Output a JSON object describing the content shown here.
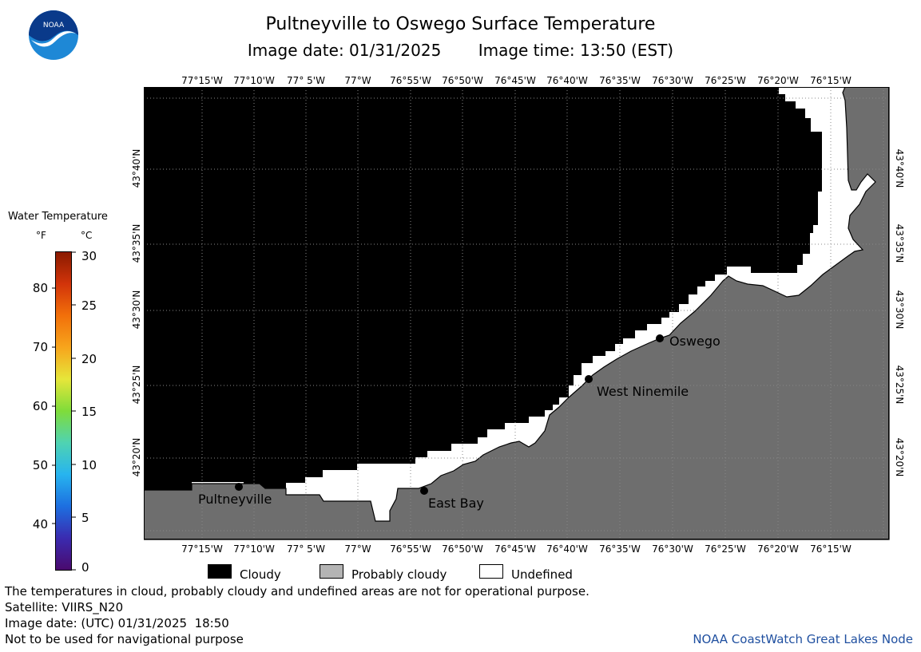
{
  "header": {
    "title": "Pultneyville to Oswego Surface Temperature",
    "image_date": "Image date: 01/31/2025",
    "image_time": "Image time: 13:50 (EST)"
  },
  "logo": {
    "text": "NOAA",
    "colors": {
      "outer": "#1e88d6",
      "inner": "#0a3a8a",
      "bird": "#ffffff"
    }
  },
  "map": {
    "longitude_labels": [
      "77°15'W",
      "77°10'W",
      "77° 5'W",
      "77°W",
      "76°55'W",
      "76°50'W",
      "76°45'W",
      "76°40'W",
      "76°35'W",
      "76°30'W",
      "76°25'W",
      "76°20'W",
      "76°15'W"
    ],
    "latitude_labels": [
      "43°40'N",
      "43°35'N",
      "43°30'N",
      "43°25'N",
      "43°20'N"
    ],
    "places": [
      {
        "name": "Pultneyville"
      },
      {
        "name": "East Bay"
      },
      {
        "name": "West Ninemile"
      },
      {
        "name": "Oswego"
      }
    ],
    "colors": {
      "cloudy": "#000000",
      "land": "#6e6e6e",
      "undefined": "#ffffff",
      "grid": "#666666"
    }
  },
  "colorbar": {
    "title": "Water Temperature",
    "unit_f": "°F",
    "unit_c": "°C",
    "fahrenheit_ticks": [
      "80",
      "70",
      "60",
      "50",
      "40"
    ],
    "celsius_ticks": [
      "30",
      "25",
      "20",
      "15",
      "10",
      "5",
      "0"
    ],
    "colors": [
      "#4a0a6e",
      "#3a2bb0",
      "#1d6fe0",
      "#27b4ef",
      "#4fd3b2",
      "#7fdc3a",
      "#e6e63a",
      "#f7a51c",
      "#f2700a",
      "#d2340a",
      "#8a1a00"
    ]
  },
  "legend": [
    {
      "label": "Cloudy",
      "color": "#000000"
    },
    {
      "label": "Probably cloudy",
      "color": "#b4b4b4"
    },
    {
      "label": "Undefined",
      "color": "#ffffff"
    }
  ],
  "footer": {
    "note": "The temperatures in cloud, probably cloudy and undefined areas are not for operational purpose.",
    "satellite": "Satellite: VIIRS_N20",
    "utc_date": "Image date: (UTC) 01/31/2025  18:50",
    "nav_warning": "Not to be used for navigational purpose",
    "credit": "NOAA CoastWatch Great Lakes Node"
  }
}
